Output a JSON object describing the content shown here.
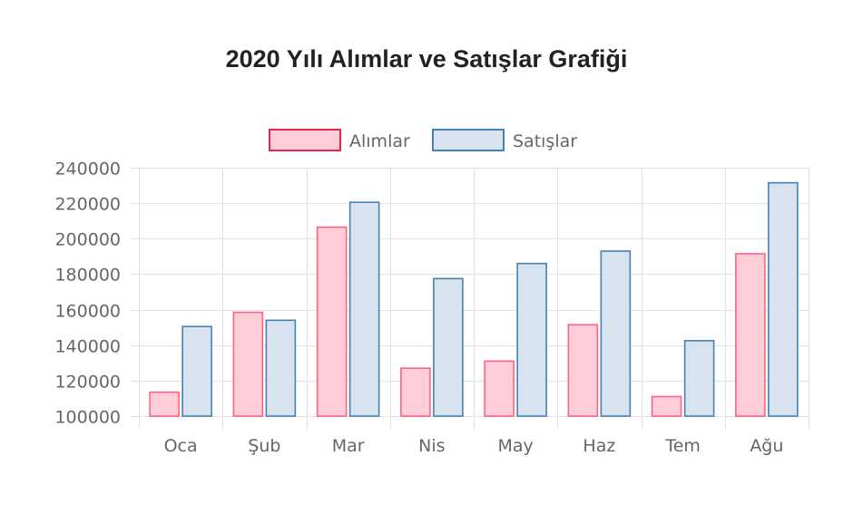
{
  "chart_data": {
    "type": "bar",
    "title": "2020 Yılı Alımlar ve Satışlar Grafiği",
    "categories": [
      "Oca",
      "Şub",
      "Mar",
      "Nis",
      "May",
      "Haz",
      "Tem",
      "Ağu"
    ],
    "series": [
      {
        "name": "Alımlar",
        "values": [
          113500,
          158500,
          206500,
          127000,
          131000,
          151500,
          111000,
          191500
        ],
        "color": "#ff6384",
        "fill": "#ffcdd7"
      },
      {
        "name": "Satışlar",
        "values": [
          150500,
          154000,
          220500,
          177500,
          186000,
          193000,
          142500,
          231500
        ],
        "color": "#4682b4",
        "fill": "#d7e3ef"
      }
    ],
    "ylim": [
      100000,
      240000
    ],
    "yticks": [
      "240000",
      "220000",
      "200000",
      "180000",
      "160000",
      "140000",
      "120000",
      "100000"
    ],
    "grid": true,
    "legend_position": "top-center"
  }
}
